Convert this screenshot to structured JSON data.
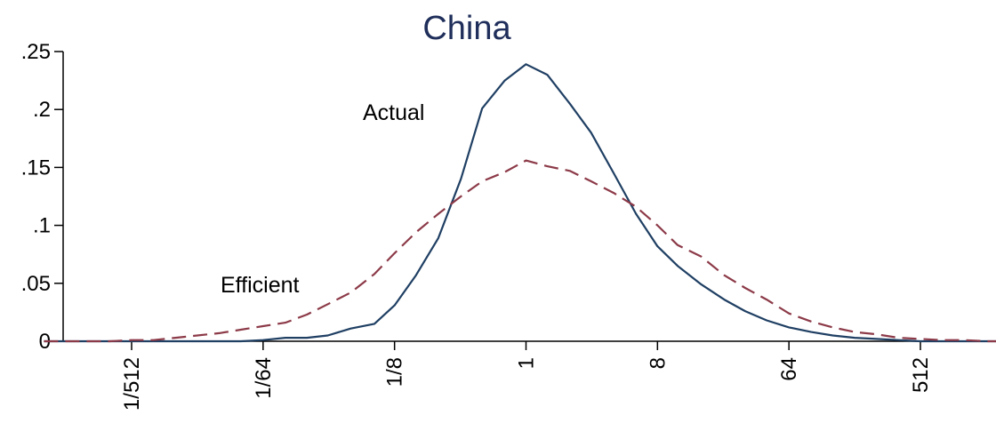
{
  "chart_data": {
    "type": "line",
    "title": "China",
    "xlabel": "",
    "ylabel": "",
    "x_scale": "log2",
    "x": [
      "1/2048",
      "1/1448",
      "1/1024",
      "1/724",
      "1/512",
      "1/362",
      "1/256",
      "1/181",
      "1/128",
      "1/91",
      "1/64",
      "1/45",
      "1/32",
      "1/23",
      "1/16",
      "1/11",
      "1/8",
      "1/5.7",
      "1/4",
      "1/2.8",
      "1/2",
      "1/1.4",
      "1",
      "1.4",
      "2",
      "2.8",
      "4",
      "5.7",
      "8",
      "11",
      "16",
      "23",
      "32",
      "45",
      "64",
      "91",
      "128",
      "181",
      "256",
      "362",
      "512",
      "724",
      "1024",
      "1448",
      "2048"
    ],
    "x_ticks": [
      "1/512",
      "1/64",
      "1/8",
      "1",
      "8",
      "64",
      "512"
    ],
    "ylim": [
      0,
      0.25
    ],
    "y_ticks": [
      ".25",
      ".2",
      ".15",
      ".1",
      ".05",
      "0"
    ],
    "grid": false,
    "series": [
      {
        "name": "Actual",
        "style": "solid",
        "color": "#1f3f63",
        "values": [
          0,
          0,
          0,
          0,
          0,
          0,
          0,
          0,
          0,
          0,
          0.001,
          0.003,
          0.003,
          0.005,
          0.011,
          0.015,
          0.031,
          0.057,
          0.089,
          0.14,
          0.201,
          0.225,
          0.239,
          0.23,
          0.205,
          0.18,
          0.145,
          0.11,
          0.082,
          0.065,
          0.049,
          0.036,
          0.026,
          0.018,
          0.012,
          0.008,
          0.005,
          0.003,
          0.002,
          0.001,
          0,
          0,
          0,
          0,
          0
        ]
      },
      {
        "name": "Efficient",
        "style": "dashed",
        "color": "#8c3a48",
        "values": [
          0,
          0,
          0,
          0,
          0.001,
          0.001,
          0.003,
          0.005,
          0.007,
          0.01,
          0.013,
          0.016,
          0.023,
          0.032,
          0.042,
          0.058,
          0.076,
          0.094,
          0.11,
          0.125,
          0.138,
          0.146,
          0.156,
          0.151,
          0.147,
          0.138,
          0.128,
          0.116,
          0.1,
          0.083,
          0.073,
          0.057,
          0.046,
          0.036,
          0.024,
          0.017,
          0.012,
          0.008,
          0.006,
          0.003,
          0.002,
          0.001,
          0.001,
          0,
          0
        ]
      }
    ],
    "annotations": [
      {
        "text": "Actual"
      },
      {
        "text": "Efficient"
      }
    ]
  },
  "colors": {
    "title": "#1f2e5a",
    "axis": "#000000"
  }
}
